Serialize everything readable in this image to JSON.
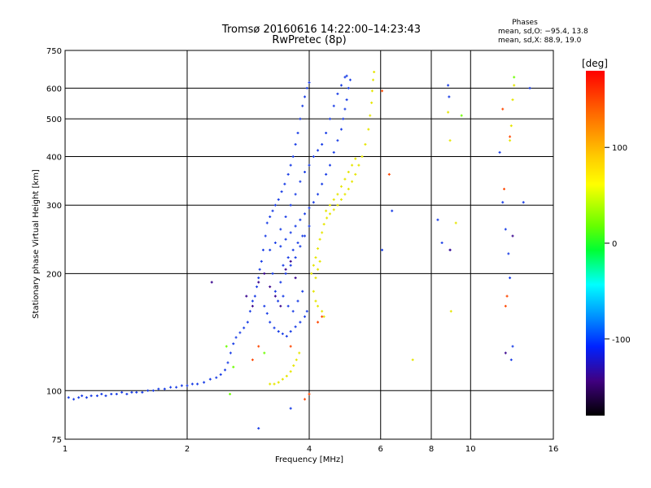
{
  "chart_data": {
    "type": "scatter",
    "title": "Tromsø 20160616 14:22:00–14:23:43",
    "subtitle": "RwPretec (8p)",
    "xlabel": "Frequency [MHz]",
    "ylabel": "Stationary phase Virtual Height [km]",
    "x_scale": "log",
    "y_scale": "log",
    "xlim": [
      1,
      16
    ],
    "ylim": [
      75,
      750
    ],
    "x_ticks": [
      1,
      2,
      4,
      6,
      8,
      10,
      16
    ],
    "x_tick_labels": [
      "1",
      "2",
      "4",
      "6",
      "8",
      "10",
      "16"
    ],
    "y_ticks": [
      75,
      100,
      200,
      300,
      400,
      500,
      600,
      750
    ],
    "y_tick_labels": [
      "75",
      "100",
      "200",
      "300",
      "400",
      "500",
      "600",
      "750"
    ],
    "grid": true,
    "stats": {
      "title": "Phases",
      "line1": "mean, sd,O:  −95.4, 13.8",
      "line2": "mean, sd,X:   88.9, 19.0"
    },
    "colorbar": {
      "label": "[deg]",
      "range": [
        -180,
        180
      ],
      "ticks": [
        100,
        0,
        -100
      ],
      "tick_labels": [
        "100",
        "0",
        "-100"
      ]
    },
    "colors": {
      "o_mode": "#1a3ee6",
      "x_mode": "#e6e600",
      "grid": "#000000"
    },
    "series": [
      {
        "mode": "O",
        "phase_deg": -95,
        "points": [
          [
            1.02,
            96
          ],
          [
            1.05,
            95
          ],
          [
            1.08,
            96
          ],
          [
            1.1,
            97
          ],
          [
            1.13,
            96
          ],
          [
            1.16,
            97
          ],
          [
            1.2,
            97
          ],
          [
            1.23,
            98
          ],
          [
            1.26,
            97
          ],
          [
            1.3,
            98
          ],
          [
            1.34,
            98
          ],
          [
            1.38,
            99
          ],
          [
            1.42,
            98
          ],
          [
            1.46,
            99
          ],
          [
            1.5,
            99
          ],
          [
            1.55,
            99
          ],
          [
            1.6,
            100
          ],
          [
            1.65,
            100
          ],
          [
            1.7,
            101
          ],
          [
            1.76,
            101
          ],
          [
            1.82,
            102
          ],
          [
            1.88,
            102
          ],
          [
            1.94,
            103
          ],
          [
            2.0,
            103
          ],
          [
            2.06,
            104
          ],
          [
            2.12,
            104
          ],
          [
            2.2,
            105
          ],
          [
            2.28,
            107
          ],
          [
            2.36,
            108
          ],
          [
            2.42,
            110
          ],
          [
            2.48,
            113
          ],
          [
            2.52,
            118
          ],
          [
            2.56,
            125
          ],
          [
            2.6,
            132
          ],
          [
            2.64,
            137
          ],
          [
            2.7,
            141
          ],
          [
            2.76,
            145
          ],
          [
            2.82,
            150
          ],
          [
            2.86,
            160
          ],
          [
            2.9,
            170
          ],
          [
            2.94,
            175
          ],
          [
            2.97,
            185
          ],
          [
            3.0,
            195
          ],
          [
            3.02,
            205
          ],
          [
            3.05,
            215
          ],
          [
            3.08,
            230
          ],
          [
            3.12,
            250
          ],
          [
            3.15,
            270
          ],
          [
            3.2,
            280
          ],
          [
            3.25,
            290
          ],
          [
            3.3,
            300
          ],
          [
            3.36,
            310
          ],
          [
            3.42,
            325
          ],
          [
            3.48,
            340
          ],
          [
            3.55,
            360
          ],
          [
            3.6,
            380
          ],
          [
            3.65,
            400
          ],
          [
            3.7,
            430
          ],
          [
            3.75,
            460
          ],
          [
            3.8,
            500
          ],
          [
            3.85,
            540
          ],
          [
            3.9,
            570
          ],
          [
            3.95,
            600
          ],
          [
            4.0,
            620
          ],
          [
            3.1,
            165
          ],
          [
            3.15,
            158
          ],
          [
            3.2,
            150
          ],
          [
            3.28,
            145
          ],
          [
            3.36,
            142
          ],
          [
            3.44,
            140
          ],
          [
            3.52,
            138
          ],
          [
            3.6,
            142
          ],
          [
            3.7,
            146
          ],
          [
            3.8,
            150
          ],
          [
            3.9,
            155
          ],
          [
            3.3,
            180
          ],
          [
            3.4,
            190
          ],
          [
            3.5,
            200
          ],
          [
            3.6,
            210
          ],
          [
            3.7,
            220
          ],
          [
            3.8,
            235
          ],
          [
            3.9,
            250
          ],
          [
            4.0,
            265
          ],
          [
            3.4,
            260
          ],
          [
            3.5,
            280
          ],
          [
            3.6,
            300
          ],
          [
            3.7,
            320
          ],
          [
            3.8,
            345
          ],
          [
            3.9,
            365
          ],
          [
            4.0,
            380
          ],
          [
            4.1,
            400
          ],
          [
            4.2,
            415
          ],
          [
            4.3,
            430
          ],
          [
            4.4,
            460
          ],
          [
            4.5,
            500
          ],
          [
            4.6,
            540
          ],
          [
            4.7,
            580
          ],
          [
            4.8,
            610
          ],
          [
            4.9,
            640
          ],
          [
            4.95,
            645
          ],
          [
            3.2,
            230
          ],
          [
            3.3,
            240
          ],
          [
            3.4,
            235
          ],
          [
            3.5,
            245
          ],
          [
            3.6,
            255
          ],
          [
            3.7,
            265
          ],
          [
            3.8,
            275
          ],
          [
            3.9,
            285
          ],
          [
            4.0,
            295
          ],
          [
            4.1,
            305
          ],
          [
            4.2,
            320
          ],
          [
            4.3,
            340
          ],
          [
            4.4,
            360
          ],
          [
            4.5,
            380
          ],
          [
            4.6,
            410
          ],
          [
            4.7,
            440
          ],
          [
            4.8,
            470
          ],
          [
            4.85,
            500
          ],
          [
            4.9,
            530
          ],
          [
            4.95,
            560
          ],
          [
            5.0,
            600
          ],
          [
            5.05,
            630
          ],
          [
            3.45,
            210
          ],
          [
            3.55,
            220
          ],
          [
            3.65,
            230
          ],
          [
            3.75,
            240
          ],
          [
            3.85,
            250
          ],
          [
            3.25,
            200
          ],
          [
            3.35,
            170
          ],
          [
            3.45,
            175
          ],
          [
            3.55,
            165
          ],
          [
            3.65,
            160
          ],
          [
            3.75,
            170
          ],
          [
            3.85,
            180
          ],
          [
            3.95,
            160
          ],
          [
            6.05,
            230
          ],
          [
            6.4,
            290
          ],
          [
            8.3,
            275
          ],
          [
            8.5,
            240
          ],
          [
            8.8,
            610
          ],
          [
            8.85,
            570
          ],
          [
            8.9,
            230
          ],
          [
            11.8,
            410
          ],
          [
            12.0,
            305
          ],
          [
            12.2,
            260
          ],
          [
            12.4,
            225
          ],
          [
            12.5,
            195
          ],
          [
            12.7,
            130
          ],
          [
            13.5,
            305
          ],
          [
            14.0,
            600
          ],
          [
            12.6,
            120
          ],
          [
            3.0,
            80
          ],
          [
            3.6,
            90
          ]
        ]
      },
      {
        "mode": "X",
        "phase_deg": 95,
        "points": [
          [
            3.2,
            104
          ],
          [
            3.28,
            104
          ],
          [
            3.36,
            105
          ],
          [
            3.44,
            107
          ],
          [
            3.52,
            109
          ],
          [
            3.6,
            112
          ],
          [
            3.66,
            116
          ],
          [
            3.72,
            120
          ],
          [
            3.78,
            125
          ],
          [
            4.05,
            200
          ],
          [
            4.1,
            210
          ],
          [
            4.15,
            220
          ],
          [
            4.2,
            232
          ],
          [
            4.25,
            245
          ],
          [
            4.3,
            255
          ],
          [
            4.35,
            268
          ],
          [
            4.42,
            278
          ],
          [
            4.5,
            285
          ],
          [
            4.6,
            292
          ],
          [
            4.7,
            300
          ],
          [
            4.8,
            310
          ],
          [
            4.9,
            320
          ],
          [
            5.0,
            330
          ],
          [
            5.1,
            345
          ],
          [
            5.2,
            360
          ],
          [
            5.3,
            380
          ],
          [
            5.4,
            400
          ],
          [
            5.5,
            430
          ],
          [
            5.6,
            470
          ],
          [
            5.65,
            510
          ],
          [
            5.7,
            550
          ],
          [
            5.72,
            590
          ],
          [
            5.75,
            630
          ],
          [
            5.78,
            660
          ],
          [
            4.1,
            180
          ],
          [
            4.15,
            170
          ],
          [
            4.2,
            165
          ],
          [
            4.3,
            160
          ],
          [
            4.35,
            155
          ],
          [
            4.15,
            195
          ],
          [
            4.2,
            205
          ],
          [
            4.25,
            215
          ],
          [
            4.4,
            290
          ],
          [
            4.5,
            300
          ],
          [
            4.6,
            310
          ],
          [
            4.7,
            320
          ],
          [
            4.8,
            335
          ],
          [
            4.9,
            350
          ],
          [
            5.0,
            365
          ],
          [
            5.1,
            380
          ],
          [
            5.2,
            395
          ],
          [
            8.8,
            520
          ],
          [
            8.9,
            440
          ],
          [
            9.2,
            270
          ],
          [
            8.95,
            160
          ],
          [
            12.5,
            440
          ],
          [
            12.6,
            480
          ],
          [
            12.7,
            560
          ],
          [
            12.8,
            610
          ],
          [
            7.2,
            120
          ]
        ]
      },
      {
        "mode": "other",
        "phase_deg": 150,
        "points": [
          [
            3.9,
            95
          ],
          [
            4.0,
            98
          ],
          [
            3.6,
            130
          ],
          [
            4.2,
            150
          ],
          [
            4.3,
            155
          ],
          [
            6.3,
            360
          ],
          [
            12.0,
            530
          ],
          [
            12.1,
            330
          ],
          [
            12.2,
            165
          ],
          [
            12.3,
            175
          ],
          [
            12.5,
            450
          ],
          [
            3.0,
            130
          ],
          [
            2.9,
            120
          ],
          [
            6.05,
            590
          ]
        ]
      },
      {
        "mode": "other",
        "phase_deg": 20,
        "points": [
          [
            2.5,
            130
          ],
          [
            2.6,
            115
          ],
          [
            2.55,
            98
          ],
          [
            9.5,
            510
          ],
          [
            12.8,
            640
          ],
          [
            3.1,
            125
          ]
        ]
      },
      {
        "mode": "other",
        "phase_deg": -140,
        "points": [
          [
            2.8,
            175
          ],
          [
            2.9,
            165
          ],
          [
            3.0,
            190
          ],
          [
            3.1,
            200
          ],
          [
            3.2,
            185
          ],
          [
            3.3,
            175
          ],
          [
            3.4,
            165
          ],
          [
            3.5,
            205
          ],
          [
            3.6,
            215
          ],
          [
            3.7,
            195
          ],
          [
            2.3,
            190
          ],
          [
            12.2,
            125
          ],
          [
            12.7,
            250
          ],
          [
            8.9,
            230
          ]
        ]
      }
    ]
  }
}
